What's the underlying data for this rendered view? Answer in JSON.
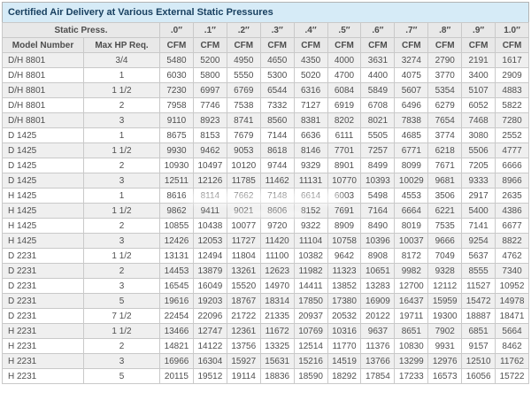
{
  "title": "Certified Air Delivery at Various External Static Pressures",
  "table": {
    "static_press_label": "Static Press.",
    "col1_header": "Model Number",
    "col2_header": "Max HP Req.",
    "unit_label": "CFM",
    "pressures": [
      ".0″",
      ".1″",
      ".2″",
      ".3″",
      ".4″",
      ".5″",
      ".6″",
      ".7″",
      ".8″",
      ".9″",
      "1.0″"
    ],
    "rows": [
      {
        "model": "D/H 8801",
        "hp": "3/4",
        "cfm": [
          5480,
          5200,
          4950,
          4650,
          4350,
          4000,
          3631,
          3274,
          2790,
          2191,
          1617
        ]
      },
      {
        "model": "D/H 8801",
        "hp": "1",
        "cfm": [
          6030,
          5800,
          5550,
          5300,
          5020,
          4700,
          4400,
          4075,
          3770,
          3400,
          2909
        ]
      },
      {
        "model": "D/H 8801",
        "hp": "1 1/2",
        "cfm": [
          7230,
          6997,
          6769,
          6544,
          6316,
          6084,
          5849,
          5607,
          5354,
          5107,
          4883
        ]
      },
      {
        "model": "D/H 8801",
        "hp": "2",
        "cfm": [
          7958,
          7746,
          7538,
          7332,
          7127,
          6919,
          6708,
          6496,
          6279,
          6052,
          5822
        ]
      },
      {
        "model": "D/H 8801",
        "hp": "3",
        "cfm": [
          9110,
          8923,
          8741,
          8560,
          8381,
          8202,
          8021,
          7838,
          7654,
          7468,
          7280
        ]
      },
      {
        "model": "D 1425",
        "hp": "1",
        "cfm": [
          8675,
          8153,
          7679,
          7144,
          6636,
          6111,
          5505,
          4685,
          3774,
          3080,
          2552
        ]
      },
      {
        "model": "D 1425",
        "hp": "1 1/2",
        "cfm": [
          9930,
          9462,
          9053,
          8618,
          8146,
          7701,
          7257,
          6771,
          6218,
          5506,
          4777
        ]
      },
      {
        "model": "D 1425",
        "hp": "2",
        "cfm": [
          10930,
          10497,
          10120,
          9744,
          9329,
          8901,
          8499,
          8099,
          7671,
          7205,
          6666
        ]
      },
      {
        "model": "D 1425",
        "hp": "3",
        "cfm": [
          12511,
          12126,
          11785,
          11462,
          11131,
          10770,
          10393,
          10029,
          9681,
          9333,
          8966
        ]
      },
      {
        "model": "H 1425",
        "hp": "1",
        "cfm": [
          8616,
          8114,
          7662,
          7148,
          6614,
          6003,
          5498,
          4553,
          3506,
          2917,
          2635
        ]
      },
      {
        "model": "H 1425",
        "hp": "1 1/2",
        "cfm": [
          9862,
          9411,
          9021,
          8606,
          8152,
          7691,
          7164,
          6664,
          6221,
          5400,
          4386
        ]
      },
      {
        "model": "H 1425",
        "hp": "2",
        "cfm": [
          10855,
          10438,
          10077,
          9720,
          9322,
          8909,
          8490,
          8019,
          7535,
          7141,
          6677
        ]
      },
      {
        "model": "H 1425",
        "hp": "3",
        "cfm": [
          12426,
          12053,
          11727,
          11420,
          11104,
          10758,
          10396,
          10037,
          9666,
          9254,
          8822
        ]
      },
      {
        "model": "D 2231",
        "hp": "1 1/2",
        "cfm": [
          13131,
          12494,
          11804,
          11100,
          10382,
          9642,
          8908,
          8172,
          7049,
          5637,
          4762
        ]
      },
      {
        "model": "D 2231",
        "hp": "2",
        "cfm": [
          14453,
          13879,
          13261,
          12623,
          11982,
          11323,
          10651,
          9982,
          9328,
          8555,
          7340
        ]
      },
      {
        "model": "D 2231",
        "hp": "3",
        "cfm": [
          16545,
          16049,
          15520,
          14970,
          14411,
          13852,
          13283,
          12700,
          12112,
          11527,
          10952
        ]
      },
      {
        "model": "D 2231",
        "hp": "5",
        "cfm": [
          19616,
          19203,
          18767,
          18314,
          17850,
          17380,
          16909,
          16437,
          15959,
          15472,
          14978
        ]
      },
      {
        "model": "D 2231",
        "hp": "7 1/2",
        "cfm": [
          22454,
          22096,
          21722,
          21335,
          20937,
          20532,
          20122,
          19711,
          19300,
          18887,
          18471
        ]
      },
      {
        "model": "H 2231",
        "hp": "1 1/2",
        "cfm": [
          13466,
          12747,
          12361,
          11672,
          10769,
          10316,
          9637,
          8651,
          7902,
          6851,
          5664
        ]
      },
      {
        "model": "H 2231",
        "hp": "2",
        "cfm": [
          14821,
          14122,
          13756,
          13325,
          12514,
          11770,
          11376,
          10830,
          9931,
          9157,
          8462
        ]
      },
      {
        "model": "H 2231",
        "hp": "3",
        "cfm": [
          16966,
          16304,
          15927,
          15631,
          15216,
          14519,
          13766,
          13299,
          12976,
          12510,
          11762
        ]
      },
      {
        "model": "H 2231",
        "hp": "5",
        "cfm": [
          20115,
          19512,
          19114,
          18836,
          18590,
          18292,
          17854,
          17233,
          16573,
          16056,
          15722
        ]
      }
    ]
  },
  "colors": {
    "title_bg": "#d6ebf7",
    "title_text": "#173f5f",
    "header_bg": "#e8e8e8",
    "header_text": "#4d4d4d",
    "cell_text": "#4f4f4f",
    "row_alt": "#efefef",
    "grid": "#c9c9c9",
    "border_strong": "#b3b3b3"
  }
}
